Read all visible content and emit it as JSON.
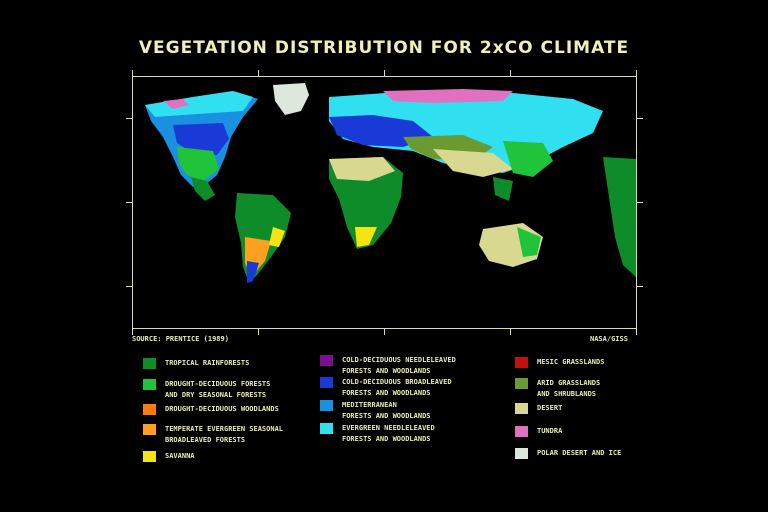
{
  "title": "VEGETATION DISTRIBUTION FOR 2xCO  CLIMATE",
  "source": "SOURCE: PRENTICE (1989)",
  "credit": "NASA/GISS",
  "legend": [
    {
      "label": "TROPICAL RAINFORESTS",
      "color": "#0f8c2a"
    },
    {
      "label": "DROUGHT-DECIDUOUS FORESTS\nAND DRY SEASONAL FORESTS",
      "color": "#1fc43a"
    },
    {
      "label": "DROUGHT-DECIDUOUS WOODLANDS",
      "color": "#ff7a10"
    },
    {
      "label": "TEMPERATE EVERGREEN SEASONAL\nBROADLEAVED FORESTS",
      "color": "#ffa020"
    },
    {
      "label": "SAVANNA",
      "color": "#f5e410"
    },
    {
      "label": "COLD-DECIDUOUS NEEDLELEAVED\nFORESTS AND WOODLANDS",
      "color": "#7a1090"
    },
    {
      "label": "COLD-DECIDUOUS BROADLEAVED\nFORESTS AND WOODLANDS",
      "color": "#1a3ad8"
    },
    {
      "label": "MEDITERRANEAN\nFORESTS AND WOODLANDS",
      "color": "#1a90e0"
    },
    {
      "label": "EVERGREEN NEEDLELEAVED\nFORESTS AND WOODLANDS",
      "color": "#30e0f0"
    },
    {
      "label": "MESIC GRASSLANDS",
      "color": "#c01010"
    },
    {
      "label": "ARID GRASSLANDS\nAND SHRUBLANDS",
      "color": "#6a9a30"
    },
    {
      "label": "DESERT",
      "color": "#d8d890"
    },
    {
      "label": "TUNDRA",
      "color": "#e070c0"
    },
    {
      "label": "POLAR DESERT AND ICE",
      "color": "#dce8dc"
    }
  ]
}
